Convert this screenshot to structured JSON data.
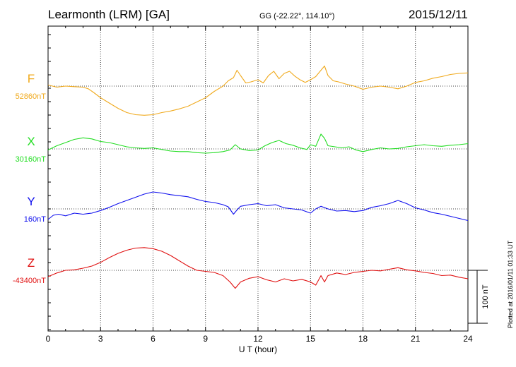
{
  "header": {
    "station": "Learmonth (LRM)  [GA]",
    "coords": "GG (-22.22°, 114.10°)",
    "date": "2015/12/11"
  },
  "footer": {
    "plotted": "Plotted at 2016/01/11 01:33 UT"
  },
  "chart_data": {
    "type": "line",
    "xlabel": "U T (hour)",
    "xlim": [
      0,
      24
    ],
    "xticks": [
      0,
      3,
      6,
      9,
      12,
      15,
      18,
      21,
      24
    ],
    "grid": true,
    "scale_bar_label": "100 nT",
    "scale_bar_nT": 100,
    "series": [
      {
        "name": "F",
        "baseline_label": "52860nT",
        "baseline_nT": 52860,
        "color": "#f0aa1e",
        "x": [
          0,
          0.5,
          1,
          1.5,
          2,
          2.3,
          2.6,
          3,
          3.5,
          4,
          4.5,
          5,
          5.5,
          6,
          6.5,
          7,
          7.5,
          8,
          8.5,
          9,
          9.5,
          10,
          10.3,
          10.6,
          10.8,
          11,
          11.3,
          11.6,
          12,
          12.3,
          12.6,
          12.9,
          13.2,
          13.5,
          13.8,
          14.1,
          14.4,
          14.7,
          15,
          15.3,
          15.6,
          15.8,
          16,
          16.3,
          16.6,
          17,
          17.5,
          18,
          18.5,
          19,
          19.5,
          20,
          20.5,
          21,
          21.5,
          22,
          22.5,
          23,
          23.5,
          24
        ],
        "y": [
          52862,
          52858,
          52860,
          52859,
          52858,
          52855,
          52848,
          52838,
          52828,
          52818,
          52810,
          52806,
          52805,
          52806,
          52810,
          52813,
          52817,
          52822,
          52830,
          52838,
          52850,
          52860,
          52870,
          52876,
          52890,
          52880,
          52866,
          52868,
          52872,
          52866,
          52880,
          52888,
          52874,
          52884,
          52888,
          52879,
          52872,
          52867,
          52872,
          52878,
          52890,
          52898,
          52880,
          52870,
          52868,
          52864,
          52860,
          52854,
          52858,
          52860,
          52858,
          52855,
          52860,
          52867,
          52870,
          52875,
          52878,
          52882,
          52884,
          52885
        ]
      },
      {
        "name": "X",
        "baseline_label": "30160nT",
        "baseline_nT": 30160,
        "color": "#22dd22",
        "x": [
          0,
          0.5,
          1,
          1.5,
          2,
          2.5,
          3,
          3.5,
          4,
          4.5,
          5,
          5.5,
          6,
          6.5,
          7,
          7.5,
          8,
          8.5,
          9,
          9.5,
          10,
          10.4,
          10.7,
          11,
          11.5,
          12,
          12.4,
          12.8,
          13.2,
          13.6,
          14,
          14.4,
          14.8,
          15,
          15.3,
          15.6,
          15.8,
          16,
          16.4,
          16.8,
          17.2,
          17.6,
          18,
          18.5,
          19,
          19.5,
          20,
          20.5,
          21,
          21.5,
          22,
          22.5,
          23,
          23.5,
          24
        ],
        "y": [
          30158,
          30166,
          30172,
          30178,
          30181,
          30179,
          30174,
          30172,
          30168,
          30164,
          30162,
          30161,
          30162,
          30159,
          30156,
          30155,
          30155,
          30153,
          30152,
          30153,
          30155,
          30158,
          30168,
          30160,
          30157,
          30158,
          30166,
          30172,
          30176,
          30170,
          30167,
          30162,
          30159,
          30168,
          30165,
          30188,
          30180,
          30166,
          30164,
          30162,
          30164,
          30158,
          30155,
          30159,
          30162,
          30160,
          30161,
          30164,
          30166,
          30168,
          30166,
          30165,
          30167,
          30168,
          30170
        ]
      },
      {
        "name": "Y",
        "baseline_label": "160nT",
        "baseline_nT": 160,
        "color": "#1111ee",
        "x": [
          0,
          0.3,
          0.6,
          1,
          1.5,
          2,
          2.5,
          3,
          3.5,
          4,
          4.5,
          5,
          5.5,
          6,
          6.5,
          7,
          7.5,
          8,
          8.5,
          9,
          9.5,
          10,
          10.3,
          10.6,
          10.8,
          11,
          11.5,
          12,
          12.5,
          13,
          13.5,
          14,
          14.5,
          15,
          15.3,
          15.6,
          16,
          16.5,
          17,
          17.5,
          18,
          18.5,
          19,
          19.5,
          20,
          20.5,
          21,
          21.5,
          22,
          22.5,
          23,
          23.5,
          24
        ],
        "y": [
          140,
          148,
          150,
          147,
          152,
          150,
          152,
          157,
          163,
          170,
          176,
          182,
          188,
          192,
          190,
          187,
          185,
          183,
          178,
          174,
          172,
          168,
          164,
          150,
          158,
          165,
          168,
          170,
          166,
          168,
          162,
          160,
          158,
          152,
          160,
          165,
          160,
          156,
          157,
          155,
          157,
          163,
          166,
          170,
          176,
          170,
          162,
          158,
          153,
          150,
          146,
          142,
          138
        ]
      },
      {
        "name": "Z",
        "baseline_label": "-43400nT",
        "baseline_nT": -43400,
        "color": "#e01111",
        "x": [
          0,
          0.5,
          1,
          1.5,
          2,
          2.5,
          3,
          3.5,
          4,
          4.5,
          5,
          5.5,
          6,
          6.5,
          7,
          7.5,
          8,
          8.5,
          9,
          9.5,
          10,
          10.4,
          10.7,
          11,
          11.5,
          12,
          12.5,
          13,
          13.5,
          14,
          14.5,
          15,
          15.3,
          15.6,
          15.8,
          16,
          16.5,
          17,
          17.5,
          18,
          18.5,
          19,
          19.5,
          20,
          20.5,
          21,
          21.5,
          22,
          22.5,
          23,
          23.5,
          24
        ],
        "y": [
          -43412,
          -43405,
          -43400,
          -43399,
          -43396,
          -43392,
          -43385,
          -43376,
          -43368,
          -43362,
          -43358,
          -43357,
          -43359,
          -43364,
          -43372,
          -43382,
          -43392,
          -43400,
          -43402,
          -43404,
          -43410,
          -43422,
          -43434,
          -43422,
          -43415,
          -43412,
          -43418,
          -43422,
          -43416,
          -43420,
          -43417,
          -43422,
          -43428,
          -43410,
          -43422,
          -43410,
          -43405,
          -43408,
          -43404,
          -43402,
          -43400,
          -43401,
          -43398,
          -43395,
          -43399,
          -43401,
          -43404,
          -43406,
          -43410,
          -43409,
          -43413,
          -43416
        ]
      }
    ]
  }
}
